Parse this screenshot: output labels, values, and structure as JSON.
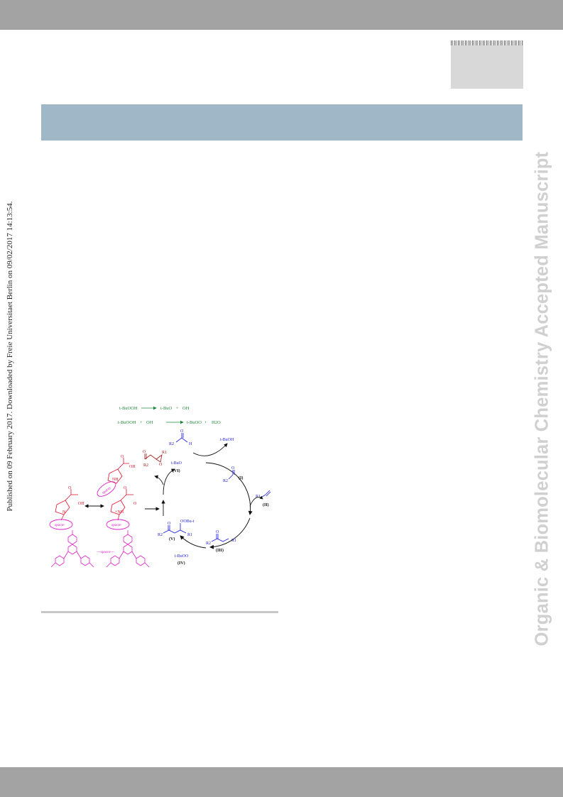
{
  "side_note": "Published on 09 February 2017. Downloaded by Freie Universitaet Berlin on 09/02/2017 14:13:54.",
  "watermark": "Organic & Biomolecular Chemistry Accepted Manuscript",
  "scheme": {
    "eq1": {
      "reactant": "t-BuOOH",
      "product1": "t-BuO",
      "plus": "+",
      "product2": "OH"
    },
    "eq2": {
      "reactant1": "t-BuOOH",
      "plus1": "+",
      "reactant2": "OH",
      "product1": "t-BuOO",
      "plus2": "+",
      "product2": "H2O"
    },
    "tbuoh": "t-BuOH",
    "tbuo": "t-BuO",
    "tbuoo": "t-BuOO",
    "labels": {
      "I": "(I)",
      "II": "(II)",
      "III": "(III)",
      "IV": "(IV)",
      "V": "(V)",
      "VI": "(VI)"
    },
    "spacer": "spacer",
    "spacer_line": "---spacer---",
    "oh": "OH",
    "o_minus": "O",
    "n": "N",
    "nh": "NH",
    "nh_plus": "+NH",
    "o": "O",
    "r1": "R1",
    "r2": "R2",
    "h": "H",
    "oobu": "OOBu-t",
    "colors": {
      "green": "#1f8a3b",
      "blue": "#1c1cd6",
      "red": "#e0102a",
      "darkred": "#a01a1a",
      "magenta": "#e020c8",
      "black": "#111111"
    }
  }
}
